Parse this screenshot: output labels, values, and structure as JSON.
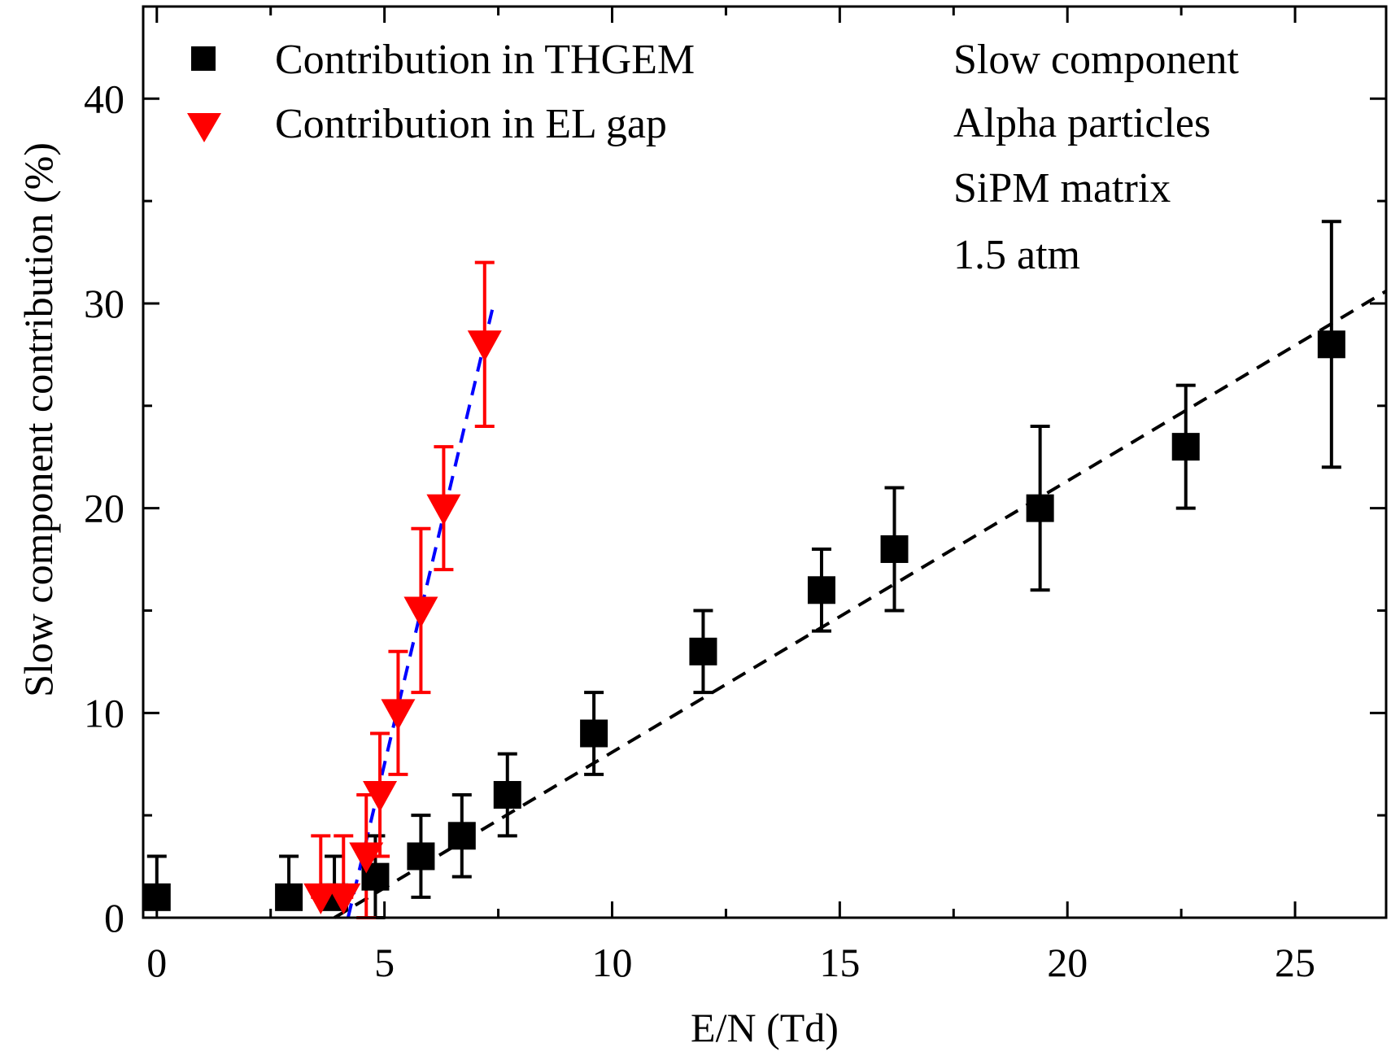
{
  "chart_data": {
    "type": "scatter",
    "title": "",
    "xlabel": "E/N (Td)",
    "ylabel": "Slow component contribution (%)",
    "xlim": [
      -0.3,
      27
    ],
    "ylim": [
      0,
      44.5
    ],
    "x_ticks": [
      0,
      5,
      10,
      15,
      20,
      25
    ],
    "y_ticks": [
      0,
      10,
      20,
      30,
      40
    ],
    "x_tick_labels": [
      "0",
      "5",
      "10",
      "15",
      "20",
      "25"
    ],
    "y_tick_labels": [
      "0",
      "10",
      "20",
      "30",
      "40"
    ],
    "legend_position": "top-left",
    "annotations": [
      "Slow component",
      "Alpha particles",
      "SiPM matrix",
      "1.5 atm"
    ],
    "colors": {
      "thgem": "#000000",
      "el_gap": "#ff0000",
      "el_fit": "#0000ff",
      "thgem_fit": "#000000"
    },
    "series": [
      {
        "name": "Contribution in THGEM",
        "marker": "square",
        "x": [
          0,
          2.9,
          3.9,
          4.8,
          5.8,
          6.7,
          7.7,
          9.6,
          12.0,
          14.6,
          16.2,
          19.4,
          22.6,
          25.8
        ],
        "y": [
          1,
          1,
          1,
          2,
          3,
          4,
          6,
          9,
          13,
          16,
          18,
          20,
          23,
          28
        ],
        "y_lower": [
          1,
          1,
          1,
          0,
          1,
          2,
          4,
          7,
          11,
          14,
          15,
          16,
          20,
          22
        ],
        "y_upper": [
          3,
          3,
          3,
          4,
          5,
          6,
          8,
          11,
          15,
          18,
          21,
          24,
          26,
          34
        ]
      },
      {
        "name": "Contribution in EL gap",
        "marker": "triangle-down",
        "x": [
          3.6,
          4.1,
          4.6,
          4.9,
          5.3,
          5.8,
          6.3,
          7.2
        ],
        "y": [
          1,
          1,
          3,
          6,
          10,
          15,
          20,
          28
        ],
        "y_lower": [
          1,
          1,
          0,
          3,
          7,
          11,
          17,
          24
        ],
        "y_upper": [
          4,
          4,
          6,
          9,
          13,
          19,
          23,
          32
        ]
      }
    ],
    "fits": [
      {
        "series": "Contribution in THGEM",
        "style": "dashed",
        "color": "black",
        "x": [
          3.9,
          27
        ],
        "y": [
          0,
          30.6
        ]
      },
      {
        "series": "Contribution in EL gap",
        "style": "dashed",
        "color": "blue",
        "x": [
          4.2,
          7.4
        ],
        "y": [
          0,
          30
        ]
      }
    ]
  }
}
